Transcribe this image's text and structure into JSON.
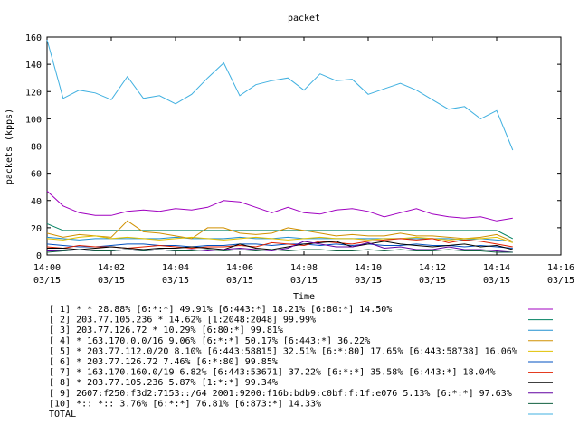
{
  "chart_data": {
    "type": "line",
    "title": "packet",
    "xlabel": "Time",
    "ylabel": "packets (kpps)",
    "xlim": [
      0,
      16
    ],
    "ylim": [
      0,
      160
    ],
    "grid": false,
    "legend_position": "bottom",
    "y_ticks": [
      "0",
      "20",
      "40",
      "60",
      "80",
      "100",
      "120",
      "140",
      "160"
    ],
    "x_ticks": [
      {
        "time": "14:00",
        "date": "03/15"
      },
      {
        "time": "14:02",
        "date": "03/15"
      },
      {
        "time": "14:04",
        "date": "03/15"
      },
      {
        "time": "14:06",
        "date": "03/15"
      },
      {
        "time": "14:08",
        "date": "03/15"
      },
      {
        "time": "14:10",
        "date": "03/15"
      },
      {
        "time": "14:12",
        "date": "03/15"
      },
      {
        "time": "14:14",
        "date": "03/15"
      },
      {
        "time": "14:16",
        "date": "03/15"
      }
    ],
    "x": [
      0,
      0.5,
      1,
      1.5,
      2,
      2.5,
      3,
      3.5,
      4,
      4.5,
      5,
      5.5,
      6,
      6.5,
      7,
      7.5,
      8,
      8.5,
      9,
      9.5,
      10,
      10.5,
      11,
      11.5,
      12,
      12.5,
      13,
      13.5,
      14,
      14.5
    ],
    "series": [
      {
        "name": "[ 1] * * 28.88%  [6:*:*] 49.91% [6:443:*] 18.21% [6:80:*] 14.50%",
        "color": "#a000c0",
        "values": [
          47,
          36,
          31,
          29,
          29,
          32,
          33,
          32,
          34,
          33,
          35,
          40,
          39,
          35,
          31,
          35,
          31,
          30,
          33,
          34,
          32,
          28,
          31,
          34,
          30,
          28,
          27,
          28,
          25,
          27
        ]
      },
      {
        "name": "[ 2] 203.77.105.236 * 14.62%  [1:2048:2048] 99.99%",
        "color": "#008060",
        "values": [
          23,
          18,
          18,
          18,
          18,
          18,
          18,
          18,
          18,
          18,
          18,
          18,
          18,
          18,
          18,
          18,
          18,
          18,
          18,
          18,
          18,
          18,
          18,
          18,
          18,
          18,
          18,
          18,
          18,
          12
        ]
      },
      {
        "name": "[ 3] 203.77.126.72 * 10.29%  [6:80:*] 99.81%",
        "color": "#2090d0",
        "values": [
          13,
          12,
          11,
          12,
          12,
          12,
          12,
          12,
          13,
          12,
          12,
          12,
          13,
          12,
          12,
          13,
          12,
          12,
          12,
          12,
          12,
          12,
          12,
          12,
          12,
          12,
          11,
          12,
          11,
          10
        ]
      },
      {
        "name": "[ 4] * 163.170.0.0/16 9.06%  [6:*:*] 50.17% [6:443:*] 36.22%",
        "color": "#d09000",
        "values": [
          16,
          13,
          15,
          14,
          13,
          25,
          17,
          16,
          14,
          12,
          20,
          20,
          16,
          15,
          16,
          20,
          18,
          16,
          14,
          15,
          14,
          14,
          16,
          14,
          14,
          13,
          12,
          13,
          15,
          10
        ]
      },
      {
        "name": "[ 5] * 203.77.112.0/20 8.10%  [6:443:58815] 32.51% [6:*:80] 17.65% [6:443:58738] 16.06%",
        "color": "#e0c000",
        "values": [
          12,
          11,
          13,
          14,
          12,
          13,
          12,
          11,
          12,
          13,
          12,
          11,
          12,
          13,
          12,
          11,
          12,
          13,
          12,
          12,
          11,
          12,
          12,
          13,
          12,
          11,
          12,
          12,
          13,
          9
        ]
      },
      {
        "name": "[ 6] * 203.77.126.72 7.46%  [6:*:80] 99.85%",
        "color": "#0050c0",
        "values": [
          8,
          7,
          6,
          6,
          7,
          8,
          8,
          7,
          7,
          6,
          7,
          7,
          8,
          8,
          7,
          8,
          8,
          7,
          8,
          7,
          8,
          7,
          7,
          8,
          7,
          7,
          6,
          7,
          6,
          5
        ]
      },
      {
        "name": "[ 7] * 163.170.160.0/19 6.82%  [6:443:53671] 37.22% [6:*:*] 35.58% [6:443:*] 18.04%",
        "color": "#e02000",
        "values": [
          6,
          5,
          7,
          6,
          6,
          5,
          6,
          7,
          6,
          5,
          6,
          6,
          7,
          6,
          9,
          8,
          7,
          10,
          9,
          8,
          10,
          11,
          12,
          11,
          12,
          9,
          11,
          10,
          8,
          6
        ]
      },
      {
        "name": "[ 8] * 203.77.105.236 5.87%  [1:*:*] 99.34%",
        "color": "#000000",
        "values": [
          5,
          5,
          4,
          5,
          6,
          5,
          4,
          5,
          5,
          6,
          5,
          4,
          8,
          5,
          4,
          6,
          8,
          9,
          10,
          6,
          8,
          10,
          8,
          7,
          6,
          7,
          8,
          6,
          7,
          4
        ]
      },
      {
        "name": "[ 9] 2607:f250:f3d2:7153::/64 2001:9200:f16b:bdb9:c0bf:f:1f:e076 5.13%  [6:*:*] 97.63%",
        "color": "#6000a0",
        "values": [
          3,
          3,
          4,
          3,
          3,
          4,
          3,
          4,
          3,
          4,
          3,
          4,
          5,
          4,
          3,
          5,
          10,
          8,
          6,
          6,
          9,
          5,
          6,
          4,
          4,
          6,
          4,
          4,
          3,
          2
        ]
      },
      {
        "name": "[10] *:: *:: 3.76%  [6:*:*] 76.81% [6:873:*] 14.33%",
        "color": "#106040",
        "values": [
          2,
          3,
          4,
          3,
          3,
          4,
          3,
          4,
          3,
          3,
          4,
          3,
          4,
          3,
          4,
          3,
          4,
          4,
          3,
          3,
          4,
          3,
          4,
          3,
          3,
          4,
          3,
          3,
          2,
          2
        ]
      },
      {
        "name": "TOTAL",
        "color": "#40b0e0",
        "values": [
          158,
          115,
          121,
          119,
          114,
          131,
          115,
          117,
          111,
          118,
          130,
          141,
          117,
          125,
          128,
          130,
          121,
          133,
          128,
          129,
          118,
          122,
          126,
          121,
          114,
          107,
          109,
          100,
          106,
          77
        ]
      }
    ]
  }
}
